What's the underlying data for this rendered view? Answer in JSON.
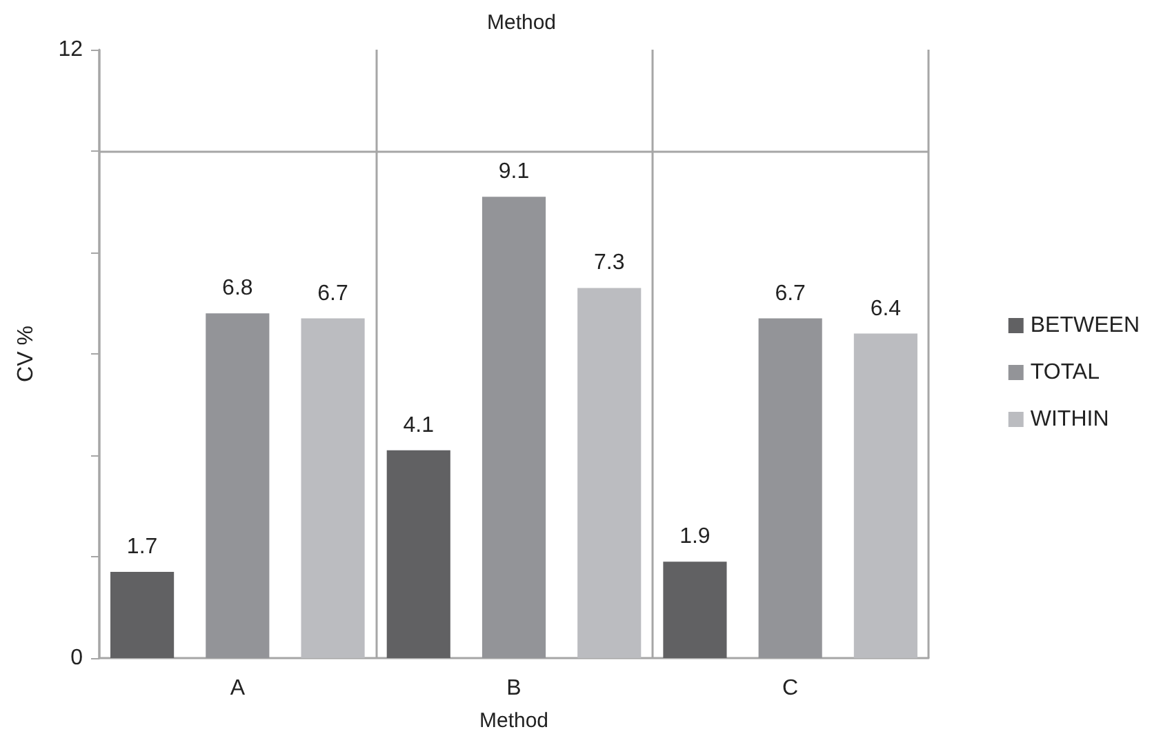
{
  "chart_data": {
    "type": "bar",
    "title": "Method",
    "xlabel": "Method",
    "ylabel": "CV %",
    "categories": [
      "A",
      "B",
      "C"
    ],
    "series": [
      {
        "name": "BETWEEN",
        "color": "#616163",
        "values": [
          1.7,
          4.1,
          1.9
        ]
      },
      {
        "name": "TOTAL",
        "color": "#939498",
        "values": [
          6.8,
          9.1,
          6.7
        ]
      },
      {
        "name": "WITHIN",
        "color": "#bbbcc0",
        "values": [
          6.7,
          7.3,
          6.4
        ]
      }
    ],
    "ylim": [
      0,
      12
    ],
    "yticks": [
      0,
      {
        "value": 2,
        "label": null
      },
      {
        "value": 4,
        "label": null
      },
      {
        "value": 6,
        "label": null
      },
      {
        "value": 8,
        "label": null
      },
      {
        "value": 10,
        "label": null
      },
      12
    ],
    "ref_lines": [
      {
        "axis": "y",
        "value": 10,
        "label": null,
        "color": "#a6a6a6"
      }
    ],
    "grid": "x",
    "legend": "right",
    "data_labels": true
  }
}
